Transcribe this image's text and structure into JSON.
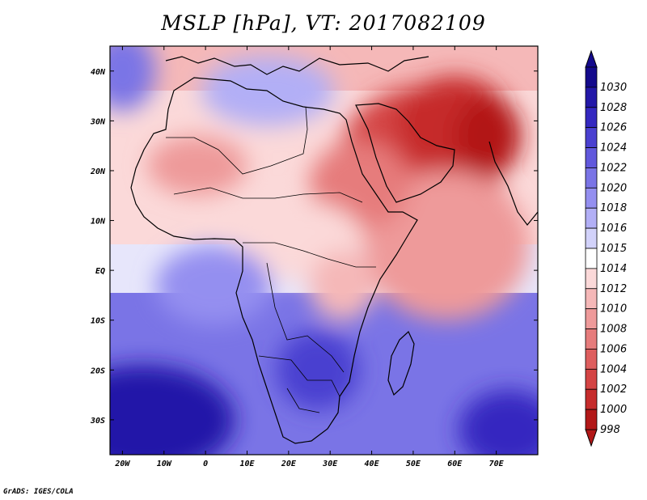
{
  "title": "MSLP [hPa], VT: 2017082109",
  "credit": "GrADS: IGES/COLA",
  "map": {
    "lon_range": [
      -23,
      80
    ],
    "lat_range": [
      -37,
      45
    ],
    "lon_ticks": [
      {
        "value": -20,
        "label": "20W"
      },
      {
        "value": -10,
        "label": "10W"
      },
      {
        "value": 0,
        "label": "0"
      },
      {
        "value": 10,
        "label": "10E"
      },
      {
        "value": 20,
        "label": "20E"
      },
      {
        "value": 30,
        "label": "30E"
      },
      {
        "value": 40,
        "label": "40E"
      },
      {
        "value": 50,
        "label": "50E"
      },
      {
        "value": 60,
        "label": "60E"
      },
      {
        "value": 70,
        "label": "70E"
      }
    ],
    "lat_ticks": [
      {
        "value": 40,
        "label": "40N"
      },
      {
        "value": 30,
        "label": "30N"
      },
      {
        "value": 20,
        "label": "20N"
      },
      {
        "value": 10,
        "label": "10N"
      },
      {
        "value": 0,
        "label": "EQ"
      },
      {
        "value": -10,
        "label": "10S"
      },
      {
        "value": -20,
        "label": "20S"
      },
      {
        "value": -30,
        "label": "30S"
      }
    ],
    "pressure_regions": [
      {
        "name": "arabian-heat-low",
        "value": 1002,
        "lon": 52,
        "lat": 22,
        "rlon": 20,
        "rlat": 15
      },
      {
        "name": "iran-low",
        "value": 1000,
        "lon": 60,
        "lat": 29,
        "rlon": 14,
        "rlat": 10
      },
      {
        "name": "asia-low-core",
        "value": 998,
        "lon": 68,
        "lat": 27,
        "rlon": 8,
        "rlat": 8
      },
      {
        "name": "indian-ocean-low",
        "value": 1008,
        "lon": 58,
        "lat": 5,
        "rlon": 20,
        "rlat": 15
      },
      {
        "name": "sahara-low",
        "value": 1008,
        "lon": -2,
        "lat": 21,
        "rlon": 12,
        "rlat": 6
      },
      {
        "name": "ethiopia-low",
        "value": 1006,
        "lon": 37,
        "lat": 17,
        "rlon": 12,
        "rlat": 9
      },
      {
        "name": "central-africa",
        "value": 1011,
        "lon": 22,
        "lat": 6,
        "rlon": 16,
        "rlat": 8
      },
      {
        "name": "east-africa",
        "value": 1010,
        "lon": 33,
        "lat": -3,
        "rlon": 8,
        "rlat": 7
      },
      {
        "name": "mediterranean-high",
        "value": 1016,
        "lon": 15,
        "lat": 36,
        "rlon": 16,
        "rlat": 7
      },
      {
        "name": "azores-high",
        "value": 1020,
        "lon": -20,
        "lat": 40,
        "rlon": 8,
        "rlat": 8
      },
      {
        "name": "south-atlantic-high",
        "value": 1028,
        "lon": -15,
        "lat": -30,
        "rlon": 22,
        "rlat": 11
      },
      {
        "name": "southern-africa-high",
        "value": 1024,
        "lon": 27,
        "lat": -20,
        "rlon": 10,
        "rlat": 8
      },
      {
        "name": "south-indian-high",
        "value": 1026,
        "lon": 73,
        "lat": -32,
        "rlon": 12,
        "rlat": 8
      },
      {
        "name": "gulf-of-guinea",
        "value": 1017,
        "lon": 2,
        "lat": -3,
        "rlon": 14,
        "rlat": 8
      }
    ]
  },
  "colorbar": {
    "levels": [
      {
        "label": "1030",
        "color": "#140a8c"
      },
      {
        "label": "1028",
        "color": "#2318a8"
      },
      {
        "label": "1026",
        "color": "#3428c0"
      },
      {
        "label": "1024",
        "color": "#4a40d0"
      },
      {
        "label": "1022",
        "color": "#6158dc"
      },
      {
        "label": "1020",
        "color": "#7a74e6"
      },
      {
        "label": "1018",
        "color": "#948ff0"
      },
      {
        "label": "1016",
        "color": "#b2aff6"
      },
      {
        "label": "1015",
        "color": "#d2d2fa"
      },
      {
        "label": "1014",
        "color": "#ffffff"
      },
      {
        "label": "1012",
        "color": "#fbd9d9"
      },
      {
        "label": "1010",
        "color": "#f5b8b8"
      },
      {
        "label": "1008",
        "color": "#ee9a9a"
      },
      {
        "label": "1006",
        "color": "#e67c7c"
      },
      {
        "label": "1004",
        "color": "#de5e5e"
      },
      {
        "label": "1002",
        "color": "#d44444"
      },
      {
        "label": "1000",
        "color": "#c62c2c"
      },
      {
        "label": "998",
        "color": "#b21818"
      }
    ],
    "top_arrow_color": "#140a8c",
    "bottom_arrow_color": "#b21818"
  }
}
